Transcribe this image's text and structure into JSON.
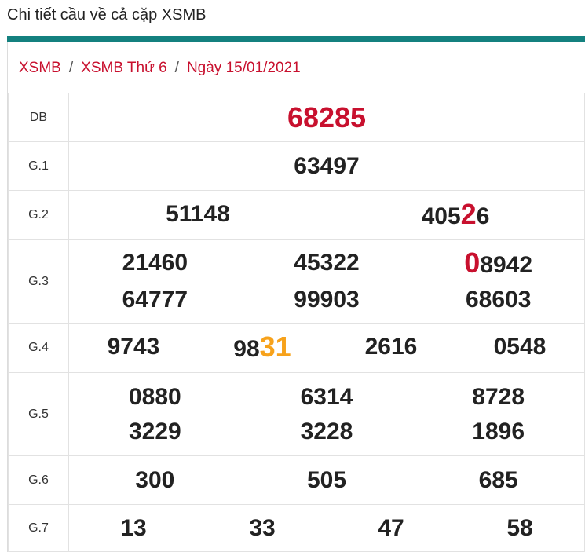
{
  "header": {
    "title": "Chi tiết cầu về cả cặp XSMB"
  },
  "colors": {
    "accent_teal": "#14817f",
    "red": "#c8102e",
    "orange": "#f7a21b"
  },
  "breadcrumb": {
    "item1": "XSMB",
    "item2": "XSMB Thứ 6",
    "item3": "Ngày 15/01/2021",
    "sep": "/"
  },
  "results": {
    "db": {
      "label": "DB",
      "value": "68285"
    },
    "g1": {
      "label": "G.1",
      "values": [
        "63497"
      ]
    },
    "g2": {
      "label": "G.2",
      "values": [
        "51148",
        "40526"
      ],
      "v2_pre": "405",
      "v2_hl": "2",
      "v2_post": "6"
    },
    "g3": {
      "label": "G.3",
      "values": [
        "21460",
        "45322",
        "08942",
        "64777",
        "99903",
        "68603"
      ],
      "v3_hl": "0",
      "v3_post": "8942"
    },
    "g4": {
      "label": "G.4",
      "values": [
        "9743",
        "9831",
        "2616",
        "0548"
      ],
      "v2_pre": "98",
      "v2_hl": "31"
    },
    "g5": {
      "label": "G.5",
      "values": [
        "0880",
        "6314",
        "8728",
        "3229",
        "3228",
        "1896"
      ]
    },
    "g6": {
      "label": "G.6",
      "values": [
        "300",
        "505",
        "685"
      ]
    },
    "g7": {
      "label": "G.7",
      "values": [
        "13",
        "33",
        "47",
        "58"
      ]
    }
  }
}
